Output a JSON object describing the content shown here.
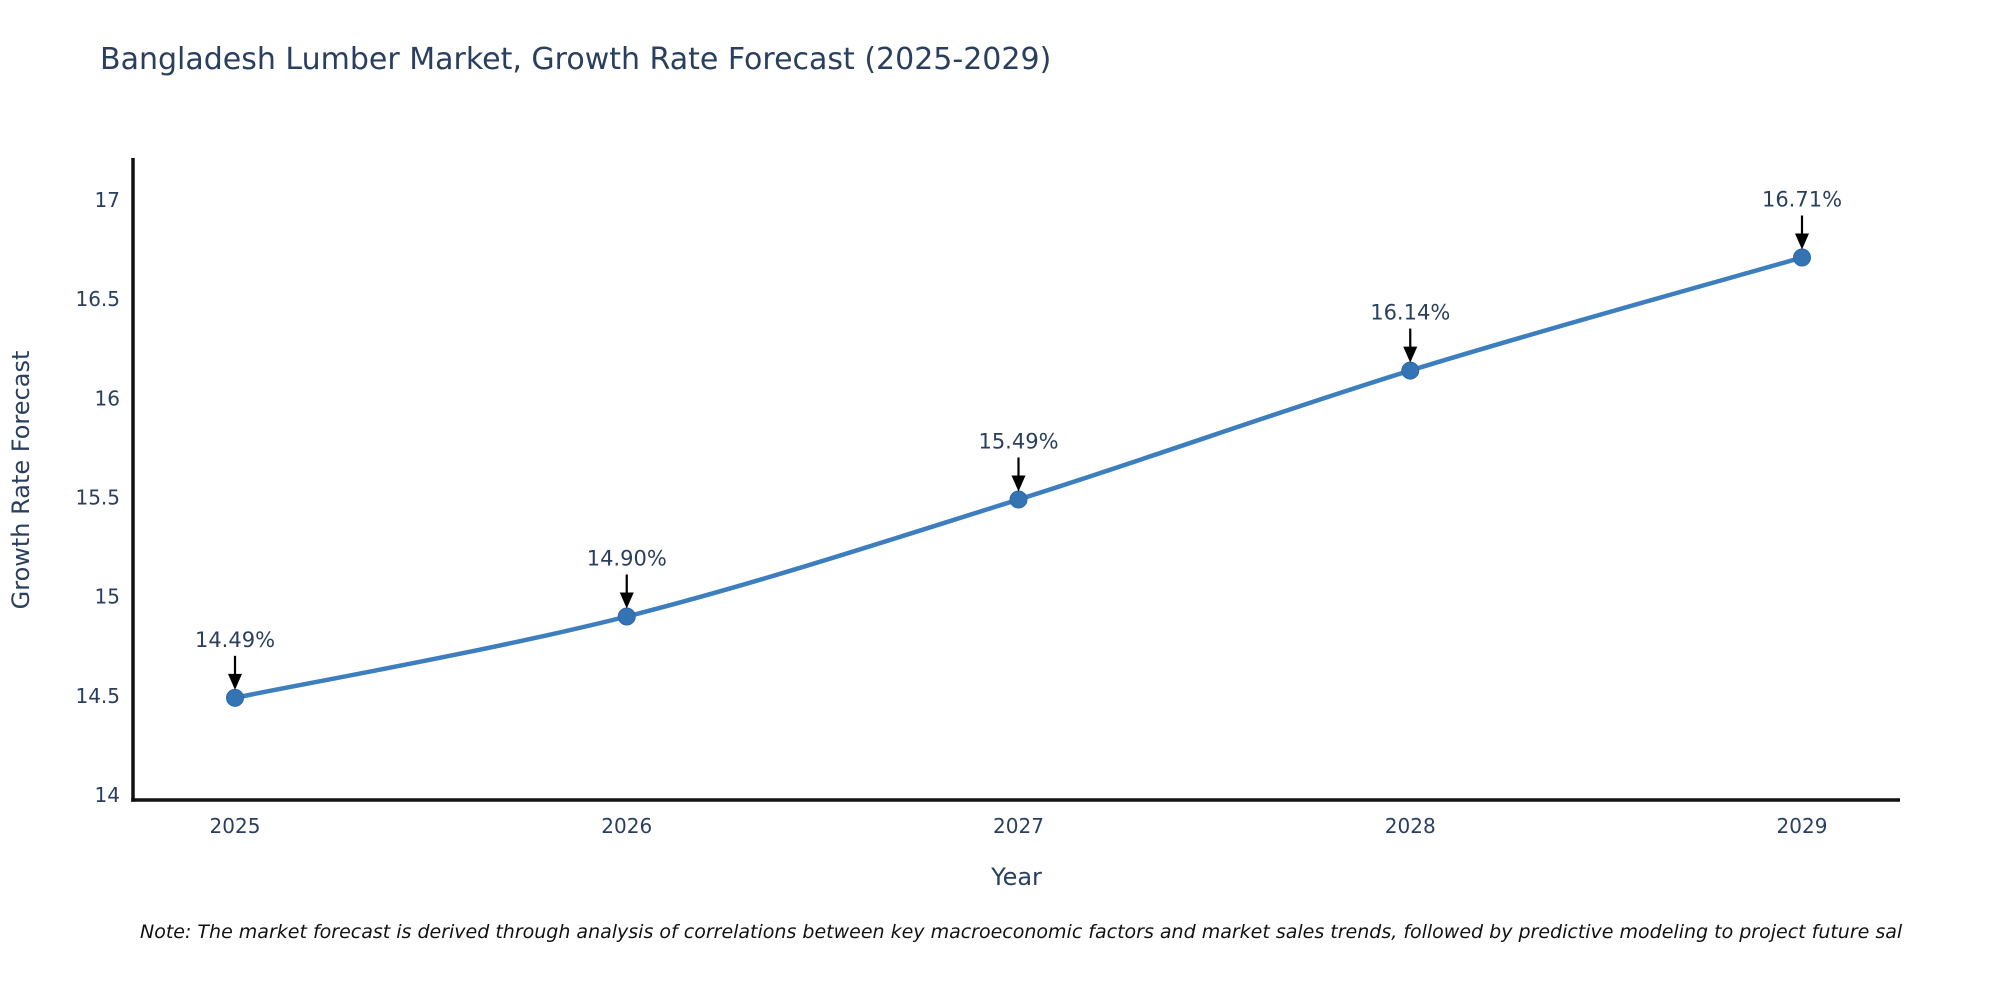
{
  "note": "Note: The market forecast is derived through analysis of correlations between key macroeconomic factors and market sales trends, followed by predictive modeling to project future sal",
  "chart_data": {
    "type": "line",
    "title": "Bangladesh Lumber Market, Growth Rate Forecast (2025-2029)",
    "xlabel": "Year",
    "ylabel": "Growth Rate Forecast",
    "categories": [
      "2025",
      "2026",
      "2027",
      "2028",
      "2029"
    ],
    "values": [
      14.49,
      14.9,
      15.49,
      16.14,
      16.71
    ],
    "point_labels": [
      "14.49%",
      "14.90%",
      "15.49%",
      "16.14%",
      "16.71%"
    ],
    "yticks": [
      14,
      14.5,
      15,
      15.5,
      16,
      16.5,
      17
    ],
    "ytick_labels": [
      "14",
      "14.5",
      "15",
      "15.5",
      "16",
      "16.5",
      "17"
    ],
    "ylim": [
      13.97,
      17.23
    ],
    "grid": false,
    "legend": "none",
    "line_shape": "spline",
    "annotations": "value labels with down arrows above each point",
    "colors": {
      "line": "#3d7ebf",
      "marker": "#3474b5",
      "marker_edge": "#2d68a6",
      "axis_spine": "#111111",
      "text": "#2a3f5f",
      "annotation_text": "#2a3f5f",
      "annotation_arrow": "#000000",
      "note_text": "#111111",
      "background": "#ffffff"
    }
  }
}
